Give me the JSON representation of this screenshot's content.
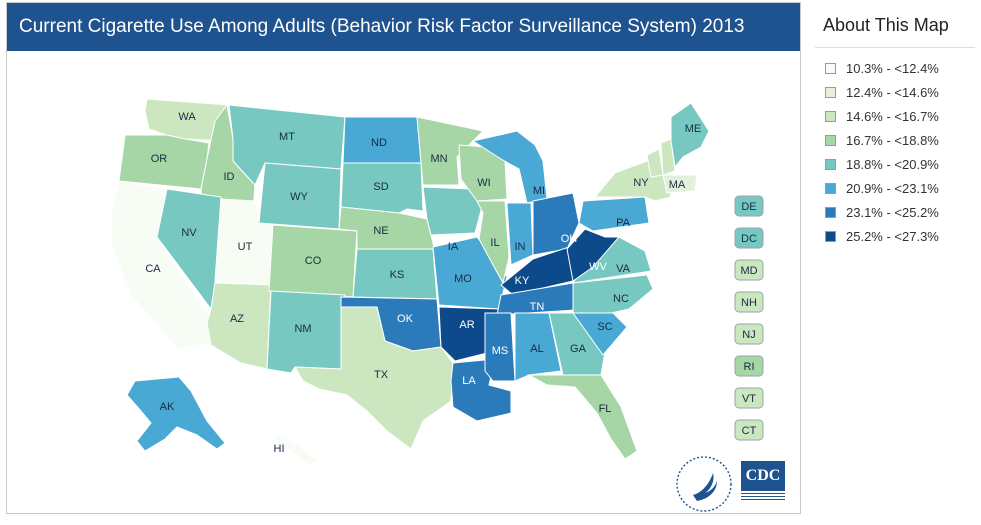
{
  "title": "Current Cigarette Use Among Adults (Behavior Risk Factor Surveillance System) 2013",
  "about": {
    "title": "About This Map"
  },
  "legend": [
    {
      "label": "10.3% - <12.4%",
      "color": "#f7fcf5"
    },
    {
      "label": "12.4% - <14.6%",
      "color": "#e3f1dc"
    },
    {
      "label": "14.6% - <16.7%",
      "color": "#cce7bf"
    },
    {
      "label": "16.7% - <18.8%",
      "color": "#a6d6a5"
    },
    {
      "label": "18.8% - <20.9%",
      "color": "#78c8c2"
    },
    {
      "label": "20.9% - <23.1%",
      "color": "#4aa8d5"
    },
    {
      "label": "23.1% - <25.2%",
      "color": "#2b7bba"
    },
    {
      "label": "25.2% - <27.3%",
      "color": "#0d4a8b"
    }
  ],
  "states": [
    {
      "abbr": "WA",
      "bin": 2
    },
    {
      "abbr": "OR",
      "bin": 3
    },
    {
      "abbr": "CA",
      "bin": 0
    },
    {
      "abbr": "ID",
      "bin": 3
    },
    {
      "abbr": "NV",
      "bin": 4
    },
    {
      "abbr": "UT",
      "bin": 0
    },
    {
      "abbr": "AZ",
      "bin": 2
    },
    {
      "abbr": "MT",
      "bin": 4
    },
    {
      "abbr": "WY",
      "bin": 4
    },
    {
      "abbr": "CO",
      "bin": 3
    },
    {
      "abbr": "NM",
      "bin": 4
    },
    {
      "abbr": "ND",
      "bin": 5
    },
    {
      "abbr": "SD",
      "bin": 4
    },
    {
      "abbr": "NE",
      "bin": 3
    },
    {
      "abbr": "KS",
      "bin": 4
    },
    {
      "abbr": "OK",
      "bin": 6
    },
    {
      "abbr": "TX",
      "bin": 2
    },
    {
      "abbr": "MN",
      "bin": 3
    },
    {
      "abbr": "IA",
      "bin": 4
    },
    {
      "abbr": "MO",
      "bin": 5
    },
    {
      "abbr": "AR",
      "bin": 7
    },
    {
      "abbr": "LA",
      "bin": 6
    },
    {
      "abbr": "WI",
      "bin": 3
    },
    {
      "abbr": "IL",
      "bin": 3
    },
    {
      "abbr": "MI",
      "bin": 5
    },
    {
      "abbr": "IN",
      "bin": 5
    },
    {
      "abbr": "OH",
      "bin": 6
    },
    {
      "abbr": "KY",
      "bin": 7
    },
    {
      "abbr": "TN",
      "bin": 6
    },
    {
      "abbr": "MS",
      "bin": 6
    },
    {
      "abbr": "AL",
      "bin": 5
    },
    {
      "abbr": "GA",
      "bin": 4
    },
    {
      "abbr": "FL",
      "bin": 3
    },
    {
      "abbr": "SC",
      "bin": 5
    },
    {
      "abbr": "NC",
      "bin": 4
    },
    {
      "abbr": "VA",
      "bin": 4
    },
    {
      "abbr": "WV",
      "bin": 7
    },
    {
      "abbr": "PA",
      "bin": 5
    },
    {
      "abbr": "NY",
      "bin": 2
    },
    {
      "abbr": "VT",
      "bin": 2
    },
    {
      "abbr": "NH",
      "bin": 2
    },
    {
      "abbr": "MA",
      "bin": 1
    },
    {
      "abbr": "ME",
      "bin": 4
    },
    {
      "abbr": "AK",
      "bin": 5
    },
    {
      "abbr": "HI",
      "bin": 0
    }
  ],
  "small_states": [
    {
      "abbr": "DE",
      "bin": 4
    },
    {
      "abbr": "DC",
      "bin": 4
    },
    {
      "abbr": "MD",
      "bin": 2
    },
    {
      "abbr": "NH",
      "bin": 2
    },
    {
      "abbr": "NJ",
      "bin": 2
    },
    {
      "abbr": "RI",
      "bin": 3
    },
    {
      "abbr": "VT",
      "bin": 2
    },
    {
      "abbr": "CT",
      "bin": 2
    }
  ],
  "logos": {
    "cdc": "CDC"
  }
}
